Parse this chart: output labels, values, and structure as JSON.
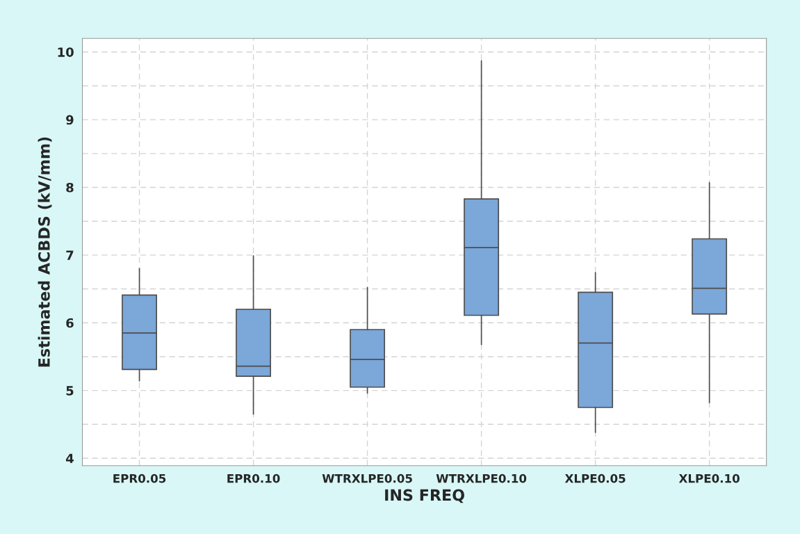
{
  "chart_data": {
    "type": "box",
    "xlabel": "INS FREQ",
    "ylabel": "Estimated ACBDS (kV/mm)",
    "categories": [
      "EPR0.05",
      "EPR0.10",
      "WTRXLPE0.05",
      "WTRXLPE0.10",
      "XLPE0.05",
      "XLPE0.10"
    ],
    "color": "#7ba7d9",
    "boxes": [
      {
        "low": 5.14,
        "q1": 5.31,
        "median": 5.85,
        "q3": 6.41,
        "high": 6.8
      },
      {
        "low": 4.65,
        "q1": 5.21,
        "median": 5.36,
        "q3": 6.2,
        "high": 6.99
      },
      {
        "low": 4.96,
        "q1": 5.05,
        "median": 5.46,
        "q3": 5.9,
        "high": 6.52
      },
      {
        "low": 5.68,
        "q1": 6.11,
        "median": 7.11,
        "q3": 7.83,
        "high": 9.87
      },
      {
        "low": 4.38,
        "q1": 4.75,
        "median": 5.7,
        "q3": 6.45,
        "high": 6.74
      },
      {
        "low": 4.82,
        "q1": 6.13,
        "median": 6.51,
        "q3": 7.24,
        "high": 8.07
      }
    ],
    "ylim": [
      3.89,
      10.2
    ],
    "yticks": [
      4,
      {
        "value": 4.5,
        "label": null
      },
      5,
      {
        "value": 5.5,
        "label": null
      },
      6,
      {
        "value": 6.5,
        "label": null
      },
      7,
      {
        "value": 7.5,
        "label": null
      },
      8,
      {
        "value": 8.5,
        "label": null
      },
      9,
      {
        "value": 9.5,
        "label": null
      },
      10
    ],
    "grid": true
  }
}
